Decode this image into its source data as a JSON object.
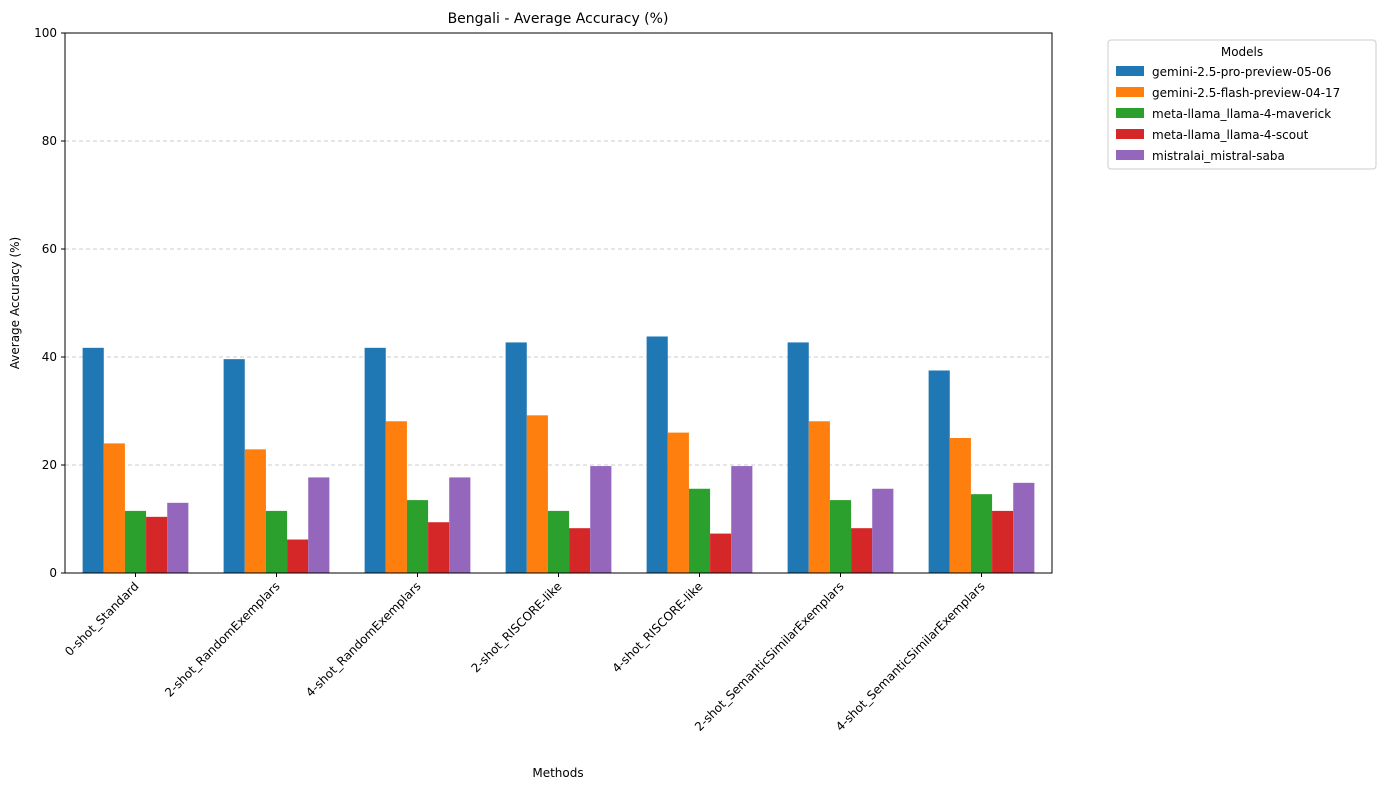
{
  "chart_data": {
    "type": "bar",
    "title": "Bengali - Average Accuracy (%)",
    "xlabel": "Methods",
    "ylabel": "Average Accuracy (%)",
    "ylim": [
      0,
      100
    ],
    "yticks": [
      0,
      20,
      40,
      60,
      80,
      100
    ],
    "grid": "y-dashed",
    "legend": {
      "title": "Models",
      "placement": "outside-top-right"
    },
    "categories": [
      "0-shot_Standard",
      "2-shot_RandomExemplars",
      "4-shot_RandomExemplars",
      "2-shot_RISCORE-like",
      "4-shot_RISCORE-like",
      "2-shot_SemanticSimilarExemplars",
      "4-shot_SemanticSimilarExemplars"
    ],
    "series": [
      {
        "name": "gemini-2.5-pro-preview-05-06",
        "color": "#1f77b4",
        "values": [
          41.7,
          39.6,
          41.7,
          42.7,
          43.8,
          42.7,
          37.5
        ]
      },
      {
        "name": "gemini-2.5-flash-preview-04-17",
        "color": "#ff7f0e",
        "values": [
          24.0,
          22.9,
          28.1,
          29.2,
          26.0,
          28.1,
          25.0
        ]
      },
      {
        "name": "meta-llama_llama-4-maverick",
        "color": "#2ca02c",
        "values": [
          11.5,
          11.5,
          13.5,
          11.5,
          15.6,
          13.5,
          14.6
        ]
      },
      {
        "name": "meta-llama_llama-4-scout",
        "color": "#d62728",
        "values": [
          10.4,
          6.2,
          9.4,
          8.3,
          7.3,
          8.3,
          11.5
        ]
      },
      {
        "name": "mistralai_mistral-saba",
        "color": "#9467bd",
        "values": [
          13.0,
          17.7,
          17.7,
          19.8,
          19.8,
          15.6,
          16.7
        ]
      }
    ]
  }
}
